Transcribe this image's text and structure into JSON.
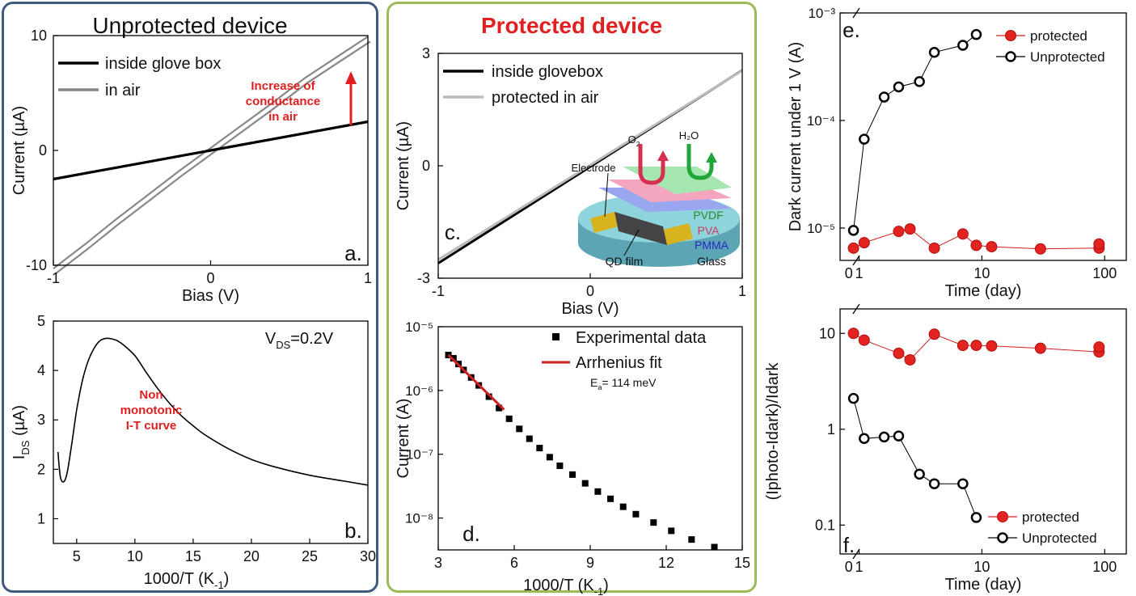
{
  "headings": {
    "left": "Unprotected device",
    "middle": "Protected device"
  },
  "colors": {
    "left_border": "#3f5b7d",
    "middle_border": "#9bbb59",
    "red": "#e02020",
    "marker_red": "#e3231f"
  },
  "chart_data": [
    {
      "id": "a",
      "type": "line",
      "panel_label": "a.",
      "xlabel": "Bias (V)",
      "ylabel": "Current (µA)",
      "xlim": [
        -1,
        1
      ],
      "ylim": [
        -10,
        10
      ],
      "xticks": [
        "-1",
        "0",
        "1"
      ],
      "yticks": [
        "-10",
        "0",
        "10"
      ],
      "legend": [
        "inside glove box",
        "in air"
      ],
      "annotation": [
        "Increase of",
        "conductance",
        "in air"
      ],
      "series": [
        {
          "name": "inside glove box",
          "color": "#000000",
          "x": [
            -1,
            1
          ],
          "y": [
            -2.5,
            2.5
          ]
        },
        {
          "name": "in air",
          "color": "#888888",
          "x": [
            -1,
            -0.8,
            -0.6,
            -0.4,
            -0.2,
            0,
            0.2,
            0.4,
            0.6,
            0.8,
            1
          ],
          "y": [
            -10.5,
            -8.4,
            -6.2,
            -4.1,
            -2,
            0,
            2,
            4,
            6.1,
            7.9,
            9.7
          ]
        }
      ]
    },
    {
      "id": "b",
      "type": "line",
      "panel_label": "b.",
      "xlabel": "1000/T (K⁻¹)",
      "ylabel": "I_DS (µA)",
      "xlim": [
        3,
        30
      ],
      "ylim": [
        0.5,
        5
      ],
      "xticks": [
        "5",
        "10",
        "15",
        "20",
        "25",
        "30"
      ],
      "yticks": [
        "1",
        "2",
        "3",
        "4",
        "5"
      ],
      "condition": "V_DS=0.2V",
      "annotation": [
        "Non",
        "monotonic",
        "I-T curve"
      ],
      "series": [
        {
          "name": "I_DS",
          "x": [
            3.4,
            3.6,
            3.9,
            4.2,
            4.6,
            5,
            5.5,
            6,
            6.5,
            7,
            7.5,
            8,
            8.5,
            9,
            10,
            11,
            12,
            13,
            14,
            15,
            16,
            18,
            20,
            22,
            25,
            28,
            30
          ],
          "y": [
            2.35,
            1.85,
            1.75,
            1.95,
            2.55,
            3.2,
            3.8,
            4.2,
            4.45,
            4.6,
            4.65,
            4.64,
            4.6,
            4.52,
            4.3,
            3.95,
            3.62,
            3.33,
            3.08,
            2.88,
            2.7,
            2.42,
            2.2,
            2.05,
            1.88,
            1.76,
            1.68
          ]
        }
      ]
    },
    {
      "id": "c",
      "type": "line",
      "panel_label": "c.",
      "xlabel": "Bias (V)",
      "ylabel": "Current (µA)",
      "xlim": [
        -1,
        1
      ],
      "ylim": [
        -3,
        3
      ],
      "xticks": [
        "-1",
        "0",
        "1"
      ],
      "yticks": [
        "-3",
        "0",
        "3"
      ],
      "legend": [
        "inside glovebox",
        "protected in air"
      ],
      "inset_labels": {
        "electrode": "Electrode",
        "o2": "O",
        "o2_sub": "2",
        "h2o": "H₂O",
        "pvdf": "PVDF",
        "pva": "PVA",
        "pmma": "PMMA",
        "glass": "Glass",
        "qd": "QD film"
      },
      "series": [
        {
          "name": "inside glovebox",
          "color": "#000000",
          "x": [
            -1,
            1
          ],
          "y": [
            -2.6,
            2.55
          ]
        },
        {
          "name": "protected in air",
          "color": "#bbbbbb",
          "x": [
            -1,
            1
          ],
          "y": [
            -2.55,
            2.5
          ]
        }
      ]
    },
    {
      "id": "d",
      "type": "scatter",
      "panel_label": "d.",
      "xlabel": "1000/T (K⁻¹)",
      "ylabel": "Current (A)",
      "xlim": [
        3,
        15
      ],
      "ylim_log10": [
        -8.5,
        -5
      ],
      "xticks": [
        "3",
        "6",
        "9",
        "12",
        "15"
      ],
      "yticks": [
        "10⁻⁵",
        "10⁻⁶",
        "10⁻⁷",
        "10⁻⁸"
      ],
      "legend": [
        "Experimental data",
        "Arrhenius fit"
      ],
      "fit_note": "E_a = 114 meV",
      "series": [
        {
          "name": "Experimental data",
          "x": [
            3.4,
            3.6,
            3.8,
            4.0,
            4.3,
            4.6,
            5.0,
            5.4,
            5.8,
            6.2,
            6.6,
            7.0,
            7.4,
            7.8,
            8.3,
            8.8,
            9.3,
            9.8,
            10.3,
            10.8,
            11.5,
            12.2,
            13.0,
            13.9
          ],
          "y": [
            3.6e-06,
            3.2e-06,
            2.6e-06,
            2.1e-06,
            1.6e-06,
            1.2e-06,
            8e-07,
            5.3e-07,
            3.6e-07,
            2.5e-07,
            1.75e-07,
            1.25e-07,
            9e-08,
            6.6e-08,
            4.8e-08,
            3.5e-08,
            2.6e-08,
            2e-08,
            1.5e-08,
            1.15e-08,
            8.5e-09,
            6.3e-09,
            4.6e-09,
            3.5e-09
          ]
        },
        {
          "name": "Arrhenius fit",
          "color": "#cc2222",
          "x": [
            3.4,
            5.6
          ],
          "y": [
            3.6e-06,
            5e-07
          ]
        }
      ]
    },
    {
      "id": "e",
      "type": "scatter",
      "panel_label": "e.",
      "xlabel": "Time (day)",
      "ylabel": "Dark current under 1 V (A)",
      "x_scale": "log",
      "y_scale": "log",
      "xticks": [
        "0",
        "1",
        "10",
        "100"
      ],
      "yticks": [
        "10⁻³",
        "10⁻⁴",
        "10⁻⁵"
      ],
      "legend": [
        "protected",
        "Unprotected"
      ],
      "series": [
        {
          "name": "protected",
          "x": [
            0.9,
            1.1,
            2.1,
            2.6,
            4.1,
            7,
            9,
            12,
            30,
            90,
            90
          ],
          "y": [
            6.5e-06,
            7.3e-06,
            9.3e-06,
            9.8e-06,
            6.5e-06,
            8.8e-06,
            6.9e-06,
            6.7e-06,
            6.4e-06,
            6.5e-06,
            7.1e-06
          ]
        },
        {
          "name": "Unprotected",
          "x": [
            0.9,
            1.1,
            1.6,
            2.1,
            3.1,
            4.1,
            7,
            9
          ],
          "y": [
            9.5e-06,
            6.7e-05,
            0.000165,
            0.000205,
            0.00023,
            0.00043,
            0.0005,
            0.00063
          ]
        }
      ]
    },
    {
      "id": "f",
      "type": "scatter",
      "panel_label": "f.",
      "xlabel": "Time (day)",
      "ylabel": "(Iphoto-Idark)/Idark",
      "x_scale": "log",
      "y_scale": "log",
      "xticks": [
        "0",
        "1",
        "10",
        "100"
      ],
      "yticks": [
        "10",
        "1",
        "0.1"
      ],
      "legend": [
        "protected",
        "Unprotected"
      ],
      "series": [
        {
          "name": "protected",
          "x": [
            0.9,
            1.1,
            2.1,
            2.6,
            4.1,
            7,
            9,
            12,
            30,
            90,
            90
          ],
          "y": [
            10,
            8.5,
            6.2,
            5.3,
            9.8,
            7.5,
            7.5,
            7.4,
            7,
            6.4,
            7.2
          ]
        },
        {
          "name": "Unprotected",
          "x": [
            0.9,
            1.1,
            1.6,
            2.1,
            3.1,
            4.1,
            7,
            9
          ],
          "y": [
            2.1,
            0.8,
            0.83,
            0.85,
            0.34,
            0.27,
            0.27,
            0.12
          ]
        }
      ]
    }
  ]
}
